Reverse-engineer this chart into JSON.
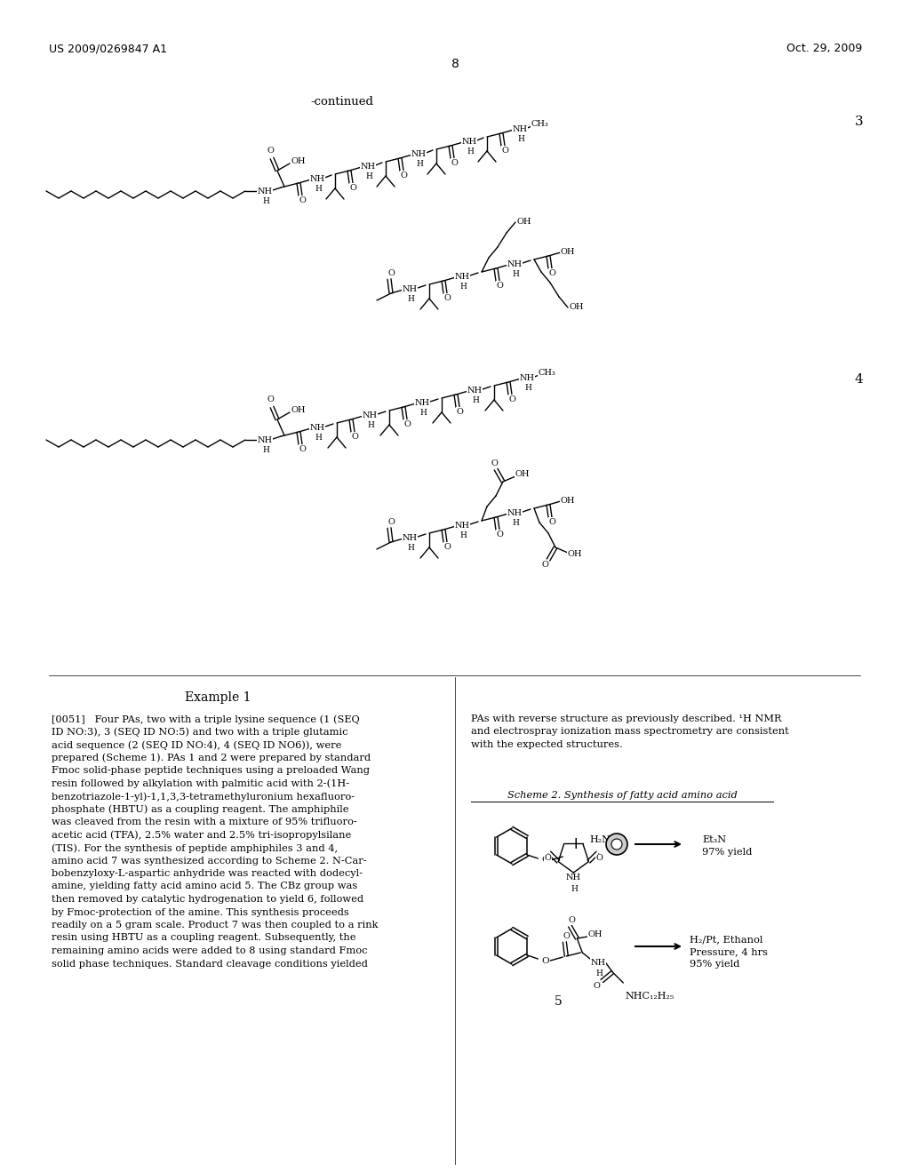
{
  "bg_color": "#ffffff",
  "header_left": "US 2009/0269847 A1",
  "header_right": "Oct. 29, 2009",
  "page_number": "8",
  "continued_text": "-continued",
  "compound_3_label": "3",
  "compound_4_label": "4",
  "example_title": "Example 1",
  "scheme_title": "Scheme 2. Synthesis of fatty acid amino acid",
  "left_col_text_lines": [
    "[0051]   Four PAs, two with a triple lysine sequence (1 (SEQ",
    "ID NO:3), 3 (SEQ ID NO:5) and two with a triple glutamic",
    "acid sequence (2 (SEQ ID NO:4), 4 (SEQ ID NO6)), were",
    "prepared (Scheme 1). PAs 1 and 2 were prepared by standard",
    "Fmoc solid-phase peptide techniques using a preloaded Wang",
    "resin followed by alkylation with palmitic acid with 2-(1H-",
    "benzotriazole-1-yl)-1,1,3,3-tetramethyluronium hexafluoro-",
    "phosphate (HBTU) as a coupling reagent. The amphiphile",
    "was cleaved from the resin with a mixture of 95% trifluoro-",
    "acetic acid (TFA), 2.5% water and 2.5% tri-isopropylsilane",
    "(TIS). For the synthesis of peptide amphiphiles 3 and 4,",
    "amino acid 7 was synthesized according to Scheme 2. N-Car-",
    "bobenzyloxy-L-aspartic anhydride was reacted with dodecyl-",
    "amine, yielding fatty acid amino acid 5. The CBz group was",
    "then removed by catalytic hydrogenation to yield 6, followed",
    "by Fmoc-protection of the amine. This synthesis proceeds",
    "readily on a 5 gram scale. Product 7 was then coupled to a rink",
    "resin using HBTU as a coupling reagent. Subsequently, the",
    "remaining amino acids were added to 8 using standard Fmoc",
    "solid phase techniques. Standard cleavage conditions yielded"
  ],
  "right_col_text_lines": [
    "PAs with reverse structure as previously described. ¹H NMR",
    "and electrospray ionization mass spectrometry are consistent",
    "with the expected structures."
  ],
  "rxn1_cond1": "Et₃N",
  "rxn1_cond2": "97% yield",
  "rxn2_cond1": "H₂/Pt, Ethanol",
  "rxn2_cond2": "Pressure, 4 hrs",
  "rxn2_cond3": "95% yield",
  "compound5_label": "5"
}
